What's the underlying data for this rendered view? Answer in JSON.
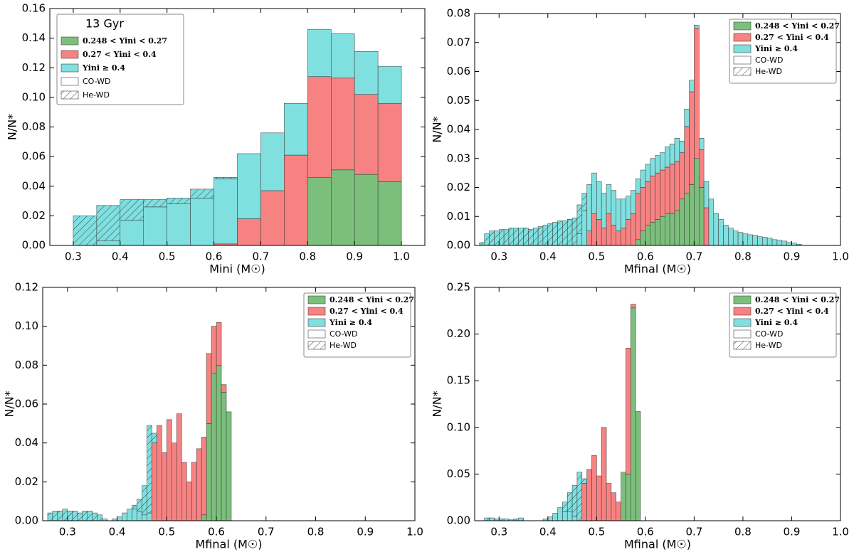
{
  "chart_data": [
    {
      "type": "histogram",
      "xlabel": "Mini (M☉)",
      "ylabel": "N/N*",
      "legend_title": "13 Gyr",
      "co_label": "CO-WD",
      "legend": "upper left",
      "xlim": [
        0.25,
        1.05
      ],
      "ylim": [
        0,
        0.16
      ],
      "xticks": [
        0.3,
        0.4,
        0.5,
        0.6,
        0.7,
        0.8,
        0.9,
        {
          "value": 1,
          "label": "1.0"
        }
      ],
      "yticks": [
        {
          "value": 0,
          "label": "0.00"
        },
        {
          "value": 0.02,
          "label": "0.02"
        },
        {
          "value": 0.04,
          "label": "0.04"
        },
        {
          "value": 0.06,
          "label": "0.06"
        },
        {
          "value": 0.08,
          "label": "0.08"
        },
        {
          "value": 0.1,
          "label": "0.10"
        },
        {
          "value": 0.12,
          "label": "0.12"
        },
        {
          "value": 0.14,
          "label": "0.14"
        },
        {
          "value": 0.16,
          "label": "0.16"
        }
      ],
      "bins": [
        0.3,
        0.35,
        0.4,
        0.45,
        0.5,
        0.55,
        0.6,
        0.65,
        0.7,
        0.75,
        0.8,
        0.85,
        0.9,
        0.95,
        1.0
      ],
      "series": [
        {
          "name": "0.248 < Yini < 0.27",
          "color": "#7cbf7c",
          "values": [
            0,
            0,
            0,
            0,
            0,
            0,
            0,
            0,
            0,
            0,
            0.046,
            0.051,
            0.048,
            0.043
          ]
        },
        {
          "name": "0.27 < Yini < 0.4",
          "color": "#f78282",
          "values": [
            0,
            0,
            0,
            0,
            0,
            0,
            0.001,
            0.018,
            0.037,
            0.061,
            0.068,
            0.062,
            0.054,
            0.053
          ]
        },
        {
          "name": "Yini ≥ 0.4",
          "color": "#80dfdf",
          "values": [
            0,
            0.003,
            0.017,
            0.026,
            0.028,
            0.032,
            0.044,
            0.044,
            0.039,
            0.035,
            0.032,
            0.03,
            0.029,
            0.025
          ]
        },
        {
          "name": "He-WD",
          "color": "#80dfdf",
          "hatch": true,
          "values": [
            0.02,
            0.024,
            0.014,
            0.005,
            0.004,
            0.006,
            0.001,
            0,
            0,
            0,
            0,
            0,
            0,
            0
          ]
        }
      ]
    },
    {
      "type": "histogram",
      "xlabel": "Mfinal (M☉)",
      "ylabel": "N/N*",
      "co_label": "CO-WD",
      "legend": "upper right",
      "xlim": [
        0.25,
        1.0
      ],
      "ylim": [
        0,
        0.08
      ],
      "xticks": [
        0.3,
        0.4,
        0.5,
        0.6,
        0.7,
        0.8,
        0.9,
        {
          "value": 1,
          "label": "1.0"
        }
      ],
      "yticks": [
        {
          "value": 0,
          "label": "0.00"
        },
        0.01,
        0.02,
        0.03,
        0.04,
        0.05,
        0.06,
        0.07,
        0.08
      ],
      "bins": [
        0.26,
        0.27,
        0.28,
        0.29,
        0.3,
        0.31,
        0.32,
        0.33,
        0.34,
        0.35,
        0.36,
        0.37,
        0.38,
        0.39,
        0.4,
        0.41,
        0.42,
        0.43,
        0.44,
        0.45,
        0.46,
        0.47,
        0.48,
        0.49,
        0.5,
        0.51,
        0.52,
        0.53,
        0.54,
        0.55,
        0.56,
        0.57,
        0.58,
        0.59,
        0.6,
        0.61,
        0.62,
        0.63,
        0.64,
        0.65,
        0.66,
        0.67,
        0.68,
        0.69,
        0.7,
        0.71,
        0.72,
        0.73,
        0.74,
        0.75,
        0.76,
        0.77,
        0.78,
        0.79,
        0.8,
        0.81,
        0.82,
        0.83,
        0.84,
        0.85,
        0.86,
        0.87,
        0.88,
        0.89,
        0.9,
        0.91,
        0.92
      ],
      "series": [
        {
          "name": "0.248 < Yini < 0.27",
          "color": "#7cbf7c",
          "values": [
            0,
            0,
            0,
            0,
            0,
            0,
            0,
            0,
            0,
            0,
            0,
            0,
            0,
            0,
            0,
            0,
            0,
            0,
            0,
            0,
            0,
            0,
            0,
            0,
            0,
            0,
            0,
            0,
            0,
            0,
            0,
            0,
            0.002,
            0.005,
            0.007,
            0.008,
            0.009,
            0.01,
            0.011,
            0.011,
            0.012,
            0.016,
            0.018,
            0.021,
            0.03,
            0.02,
            0,
            0,
            0,
            0,
            0,
            0,
            0,
            0,
            0,
            0,
            0,
            0,
            0,
            0,
            0,
            0,
            0,
            0,
            0,
            0
          ]
        },
        {
          "name": "0.27 < Yini < 0.4",
          "color": "#f78282",
          "values": [
            0,
            0,
            0,
            0,
            0,
            0,
            0,
            0,
            0,
            0,
            0,
            0,
            0,
            0,
            0,
            0,
            0,
            0,
            0,
            0,
            0,
            0,
            0.005,
            0.011,
            0.009,
            0.006,
            0.011,
            0.007,
            0.005,
            0.006,
            0.009,
            0.011,
            0.016,
            0.015,
            0.015,
            0.016,
            0.016,
            0.016,
            0.016,
            0.017,
            0.017,
            0.016,
            0.023,
            0.032,
            0.045,
            0.013,
            0.013,
            0,
            0,
            0,
            0,
            0,
            0,
            0,
            0,
            0,
            0,
            0,
            0,
            0,
            0,
            0,
            0,
            0,
            0,
            0
          ]
        },
        {
          "name": "Yini ≥ 0.4",
          "color": "#80dfdf",
          "values": [
            0,
            0,
            0,
            0,
            0,
            0,
            0,
            0,
            0,
            0,
            0,
            0,
            0,
            0,
            0,
            0,
            0,
            0,
            0,
            0,
            0.004,
            0.012,
            0.016,
            0.014,
            0.013,
            0.012,
            0.01,
            0.012,
            0.011,
            0.01,
            0.008,
            0.008,
            0.005,
            0.006,
            0.006,
            0.006,
            0.006,
            0.006,
            0.007,
            0.007,
            0.008,
            0.004,
            0.006,
            0.004,
            0.001,
            0.004,
            0.009,
            0.016,
            0.011,
            0.009,
            0.007,
            0.006,
            0.005,
            0.0045,
            0.004,
            0.0037,
            0.0035,
            0.003,
            0.0028,
            0.0025,
            0.002,
            0.0018,
            0.0015,
            0.001,
            0.0008,
            0.0004
          ]
        },
        {
          "name": "He-WD",
          "color": "#80dfdf",
          "hatch": true,
          "values": [
            0.001,
            0.004,
            0.005,
            0.005,
            0.0055,
            0.0055,
            0.006,
            0.006,
            0.006,
            0.006,
            0.0055,
            0.006,
            0.0065,
            0.007,
            0.0075,
            0.008,
            0.0085,
            0.0085,
            0.009,
            0.0095,
            0.01,
            0.006,
            0,
            0,
            0,
            0,
            0,
            0,
            0,
            0,
            0,
            0,
            0,
            0,
            0,
            0,
            0,
            0,
            0,
            0,
            0,
            0,
            0,
            0,
            0,
            0,
            0,
            0,
            0,
            0,
            0,
            0,
            0,
            0,
            0,
            0,
            0,
            0,
            0,
            0,
            0,
            0,
            0,
            0,
            0,
            0
          ]
        }
      ]
    },
    {
      "type": "histogram",
      "xlabel": "Mfinal (M☉)",
      "ylabel": "N/N*",
      "co_label": "CO-WD",
      "legend": "upper right",
      "xlim": [
        0.25,
        1.0
      ],
      "ylim": [
        0,
        0.12
      ],
      "xticks": [
        0.3,
        0.4,
        0.5,
        0.6,
        0.7,
        0.8,
        0.9,
        {
          "value": 1,
          "label": "1.0"
        }
      ],
      "yticks": [
        {
          "value": 0,
          "label": "0.00"
        },
        {
          "value": 0.02,
          "label": "0.02"
        },
        {
          "value": 0.04,
          "label": "0.04"
        },
        {
          "value": 0.06,
          "label": "0.06"
        },
        {
          "value": 0.08,
          "label": "0.08"
        },
        {
          "value": 0.1,
          "label": "0.10"
        },
        {
          "value": 0.12,
          "label": "0.12"
        }
      ],
      "bins": [
        0.26,
        0.27,
        0.28,
        0.29,
        0.3,
        0.31,
        0.32,
        0.33,
        0.34,
        0.35,
        0.36,
        0.37,
        0.38,
        0.39,
        0.4,
        0.41,
        0.42,
        0.43,
        0.44,
        0.45,
        0.46,
        0.47,
        0.48,
        0.49,
        0.5,
        0.51,
        0.52,
        0.53,
        0.54,
        0.55,
        0.56,
        0.57,
        0.58,
        0.59,
        0.6,
        0.61,
        0.62,
        0.63
      ],
      "series": [
        {
          "name": "0.248 < Yini < 0.27",
          "color": "#7cbf7c",
          "values": [
            0,
            0,
            0,
            0,
            0,
            0,
            0,
            0,
            0,
            0,
            0,
            0,
            0,
            0,
            0,
            0,
            0,
            0,
            0,
            0,
            0,
            0,
            0,
            0,
            0,
            0,
            0,
            0,
            0,
            0,
            0,
            0.003,
            0.05,
            0.076,
            0.08,
            0.066,
            0.056
          ]
        },
        {
          "name": "0.27 < Yini < 0.4",
          "color": "#f78282",
          "values": [
            0,
            0,
            0,
            0,
            0,
            0,
            0,
            0,
            0,
            0,
            0,
            0,
            0,
            0,
            0,
            0,
            0,
            0,
            0,
            0,
            0,
            0.04,
            0.049,
            0.035,
            0.052,
            0.04,
            0.055,
            0.03,
            0.02,
            0.03,
            0.037,
            0.04,
            0.036,
            0.024,
            0.022,
            0.004,
            0
          ]
        },
        {
          "name": "Yini ≥ 0.4",
          "color": "#80dfdf",
          "values": [
            0,
            0,
            0,
            0,
            0,
            0,
            0,
            0,
            0,
            0,
            0,
            0,
            0,
            0.001,
            0.002,
            0.004,
            0.006,
            0.006,
            0.005,
            0.003,
            0.004,
            0,
            0,
            0,
            0,
            0,
            0,
            0,
            0,
            0,
            0,
            0,
            0,
            0,
            0,
            0,
            0
          ]
        },
        {
          "name": "He-WD",
          "color": "#80dfdf",
          "hatch": true,
          "values": [
            0.004,
            0.005,
            0.005,
            0.006,
            0.005,
            0.005,
            0.004,
            0.005,
            0.005,
            0.004,
            0.003,
            0.001,
            0,
            0,
            0,
            0,
            0,
            0.002,
            0.006,
            0.015,
            0.045,
            0.005,
            0,
            0,
            0,
            0,
            0,
            0,
            0,
            0,
            0,
            0,
            0,
            0,
            0,
            0,
            0
          ]
        }
      ]
    },
    {
      "type": "histogram",
      "xlabel": "Mfinal (M☉)",
      "ylabel": "N/N*",
      "co_label": "CO-WD",
      "legend": "upper right",
      "xlim": [
        0.25,
        1.0
      ],
      "ylim": [
        0,
        0.25
      ],
      "xticks": [
        0.3,
        0.4,
        0.5,
        0.6,
        0.7,
        0.8,
        0.9,
        {
          "value": 1,
          "label": "1.0"
        }
      ],
      "yticks": [
        {
          "value": 0,
          "label": "0.00"
        },
        0.05,
        {
          "value": 0.1,
          "label": "0.10"
        },
        0.15,
        {
          "value": 0.2,
          "label": "0.20"
        },
        0.25
      ],
      "bins": [
        0.27,
        0.28,
        0.29,
        0.3,
        0.31,
        0.32,
        0.33,
        0.34,
        0.35,
        0.36,
        0.37,
        0.38,
        0.39,
        0.4,
        0.41,
        0.42,
        0.43,
        0.44,
        0.45,
        0.46,
        0.47,
        0.48,
        0.49,
        0.5,
        0.51,
        0.52,
        0.53,
        0.54,
        0.55,
        0.56,
        0.57,
        0.58,
        0.59
      ],
      "series": [
        {
          "name": "0.248 < Yini < 0.27",
          "color": "#7cbf7c",
          "values": [
            0,
            0,
            0,
            0,
            0,
            0,
            0,
            0,
            0,
            0,
            0,
            0,
            0,
            0,
            0,
            0,
            0,
            0,
            0,
            0,
            0,
            0,
            0,
            0,
            0,
            0,
            0,
            0,
            0.052,
            0.05,
            0.228,
            0.117
          ]
        },
        {
          "name": "0.27 < Yini < 0.4",
          "color": "#f78282",
          "values": [
            0,
            0,
            0,
            0,
            0,
            0,
            0,
            0,
            0,
            0,
            0,
            0,
            0,
            0,
            0,
            0,
            0,
            0,
            0,
            0,
            0.04,
            0.055,
            0.07,
            0.048,
            0.1,
            0.04,
            0.03,
            0.02,
            0,
            0.135,
            0.004,
            0
          ]
        },
        {
          "name": "Yini ≥ 0.4",
          "color": "#80dfdf",
          "values": [
            0,
            0,
            0,
            0,
            0,
            0,
            0,
            0,
            0,
            0,
            0,
            0,
            0.002,
            0.004,
            0.008,
            0.014,
            0.01,
            0.01,
            0.005,
            0,
            0,
            0,
            0,
            0,
            0,
            0,
            0,
            0,
            0,
            0,
            0,
            0
          ]
        },
        {
          "name": "He-WD",
          "color": "#80dfdf",
          "hatch": true,
          "values": [
            0.003,
            0.003,
            0.002,
            0.002,
            0.002,
            0.001,
            0.002,
            0.003,
            0,
            0,
            0,
            0,
            0,
            0,
            0,
            0,
            0.01,
            0.02,
            0.033,
            0.052,
            0.005,
            0,
            0,
            0,
            0,
            0,
            0,
            0,
            0,
            0,
            0,
            0
          ]
        }
      ]
    }
  ]
}
